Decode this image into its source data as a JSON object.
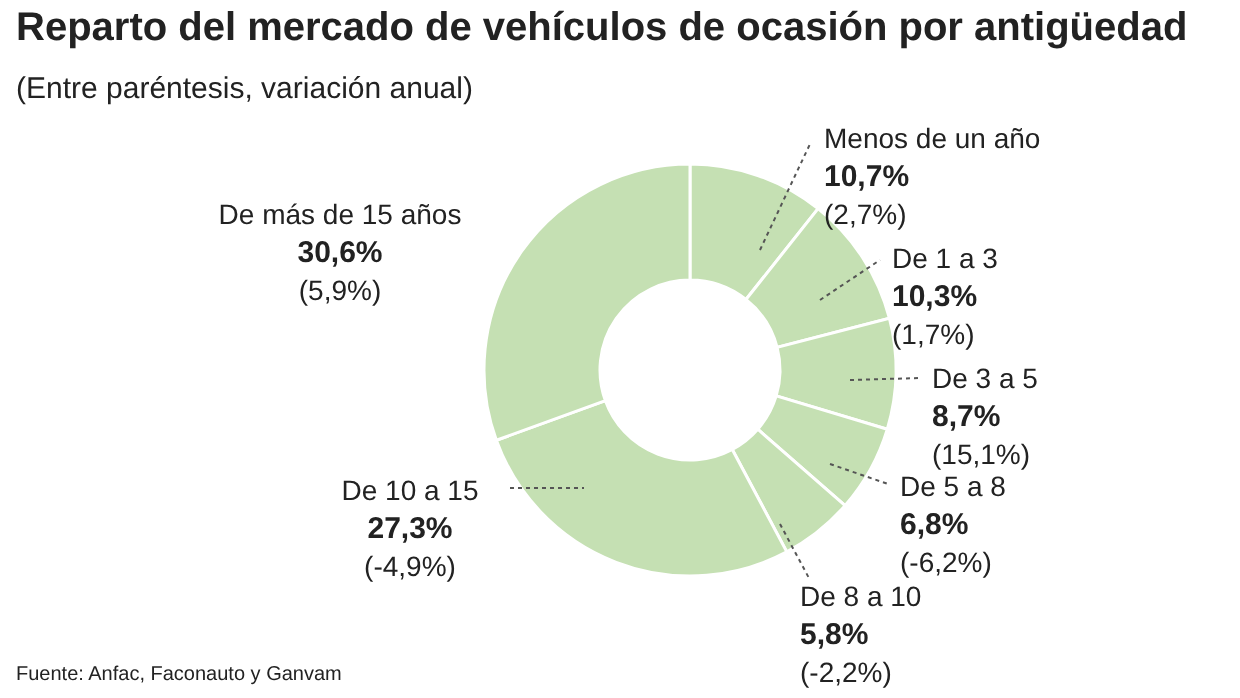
{
  "chart_data": {
    "type": "donut",
    "title": "Reparto del mercado de vehículos de ocasión por antigüedad",
    "subtitle": "(Entre paréntesis, variación anual)",
    "categories": [
      "Menos de un año",
      "De 1 a 3",
      "De 3 a 5",
      "De 5 a 8",
      "De 8 a 10",
      "De 10 a 15",
      "De más de 15 años"
    ],
    "values": [
      10.7,
      10.3,
      8.7,
      6.8,
      5.8,
      27.3,
      30.6
    ],
    "colors": [
      "#c5e0b3",
      "#c5e0b3",
      "#c5e0b3",
      "#c5e0b3",
      "#c5e0b3",
      "#c5e0b3",
      "#c5e0b3"
    ],
    "value_labels": [
      "10,7%",
      "10,3%",
      "8,7%",
      "6,8%",
      "5,8%",
      "27,3%",
      "30,6%"
    ],
    "annotations": [
      "(2,7%)",
      "(1,7%)",
      "(15,1%)",
      "(-6,2%)",
      "(-2,2%)",
      "(-4,9%)",
      "(5,9%)",
      "Fuente: Anfac, Faconauto y Ganvam"
    ]
  }
}
